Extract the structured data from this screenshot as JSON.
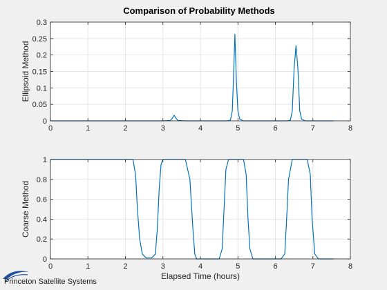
{
  "figure": {
    "title": "Comparison of Probability Methods",
    "logo_text": "Princeton Satellite Systems"
  },
  "colors": {
    "background": "#f0f0f0",
    "axes_background": "#ffffff",
    "line": "#0072bd",
    "grid": "#e6e6e6",
    "axis": "#262626",
    "logo_swoosh": "#1f4e9c"
  },
  "chart_data": [
    {
      "type": "line",
      "ylabel": "Ellipsoid Method",
      "xlabel": "",
      "xlim": [
        0,
        8
      ],
      "ylim": [
        0,
        0.3
      ],
      "xticks": [
        "0",
        "1",
        "2",
        "3",
        "4",
        "5",
        "6",
        "7",
        "8"
      ],
      "yticks": [
        "0",
        "0.05",
        "0.1",
        "0.15",
        "0.2",
        "0.25",
        "0.3"
      ],
      "grid": true,
      "series": [
        {
          "x": [
            0,
            3.0,
            3.2,
            3.25,
            3.3,
            3.35,
            3.4,
            3.6,
            4.7,
            4.8,
            4.85,
            4.88,
            4.92,
            4.96,
            5.0,
            5.05,
            5.15,
            6.3,
            6.4,
            6.45,
            6.5,
            6.55,
            6.6,
            6.65,
            6.7,
            6.8,
            7.55
          ],
          "values": [
            0,
            0,
            0.001,
            0.008,
            0.017,
            0.008,
            0.001,
            0,
            0,
            0.002,
            0.03,
            0.12,
            0.263,
            0.12,
            0.03,
            0.005,
            0,
            0,
            0.002,
            0.03,
            0.16,
            0.228,
            0.16,
            0.03,
            0.005,
            0,
            0
          ]
        }
      ]
    },
    {
      "type": "line",
      "ylabel": "Coarse Method",
      "xlabel": "Elapsed Time (hours)",
      "xlim": [
        0,
        8
      ],
      "ylim": [
        0,
        1
      ],
      "xticks": [
        "0",
        "1",
        "2",
        "3",
        "4",
        "5",
        "6",
        "7",
        "8"
      ],
      "yticks": [
        "0",
        "0.2",
        "0.4",
        "0.6",
        "0.8",
        "1"
      ],
      "grid": true,
      "series": [
        {
          "x": [
            0,
            2.2,
            2.27,
            2.32,
            2.38,
            2.45,
            2.55,
            2.7,
            2.8,
            2.85,
            2.9,
            2.95,
            3.0,
            3.1,
            3.6,
            3.72,
            3.8,
            3.85,
            3.9,
            4.0,
            4.5,
            4.58,
            4.63,
            4.68,
            4.75,
            4.85,
            5.15,
            5.22,
            5.27,
            5.32,
            5.4,
            5.5,
            6.15,
            6.25,
            6.3,
            6.35,
            6.45,
            6.6,
            6.85,
            6.93,
            6.98,
            7.05,
            7.15,
            7.55
          ],
          "values": [
            1,
            1,
            0.85,
            0.5,
            0.2,
            0.05,
            0.01,
            0.01,
            0.05,
            0.3,
            0.7,
            0.95,
            1,
            1,
            1,
            0.8,
            0.3,
            0.05,
            0,
            0,
            0,
            0.1,
            0.5,
            0.9,
            1,
            1,
            1,
            0.85,
            0.4,
            0.1,
            0,
            0,
            0,
            0.05,
            0.4,
            0.8,
            1,
            1,
            1,
            0.85,
            0.4,
            0.05,
            0,
            0
          ]
        }
      ]
    }
  ]
}
